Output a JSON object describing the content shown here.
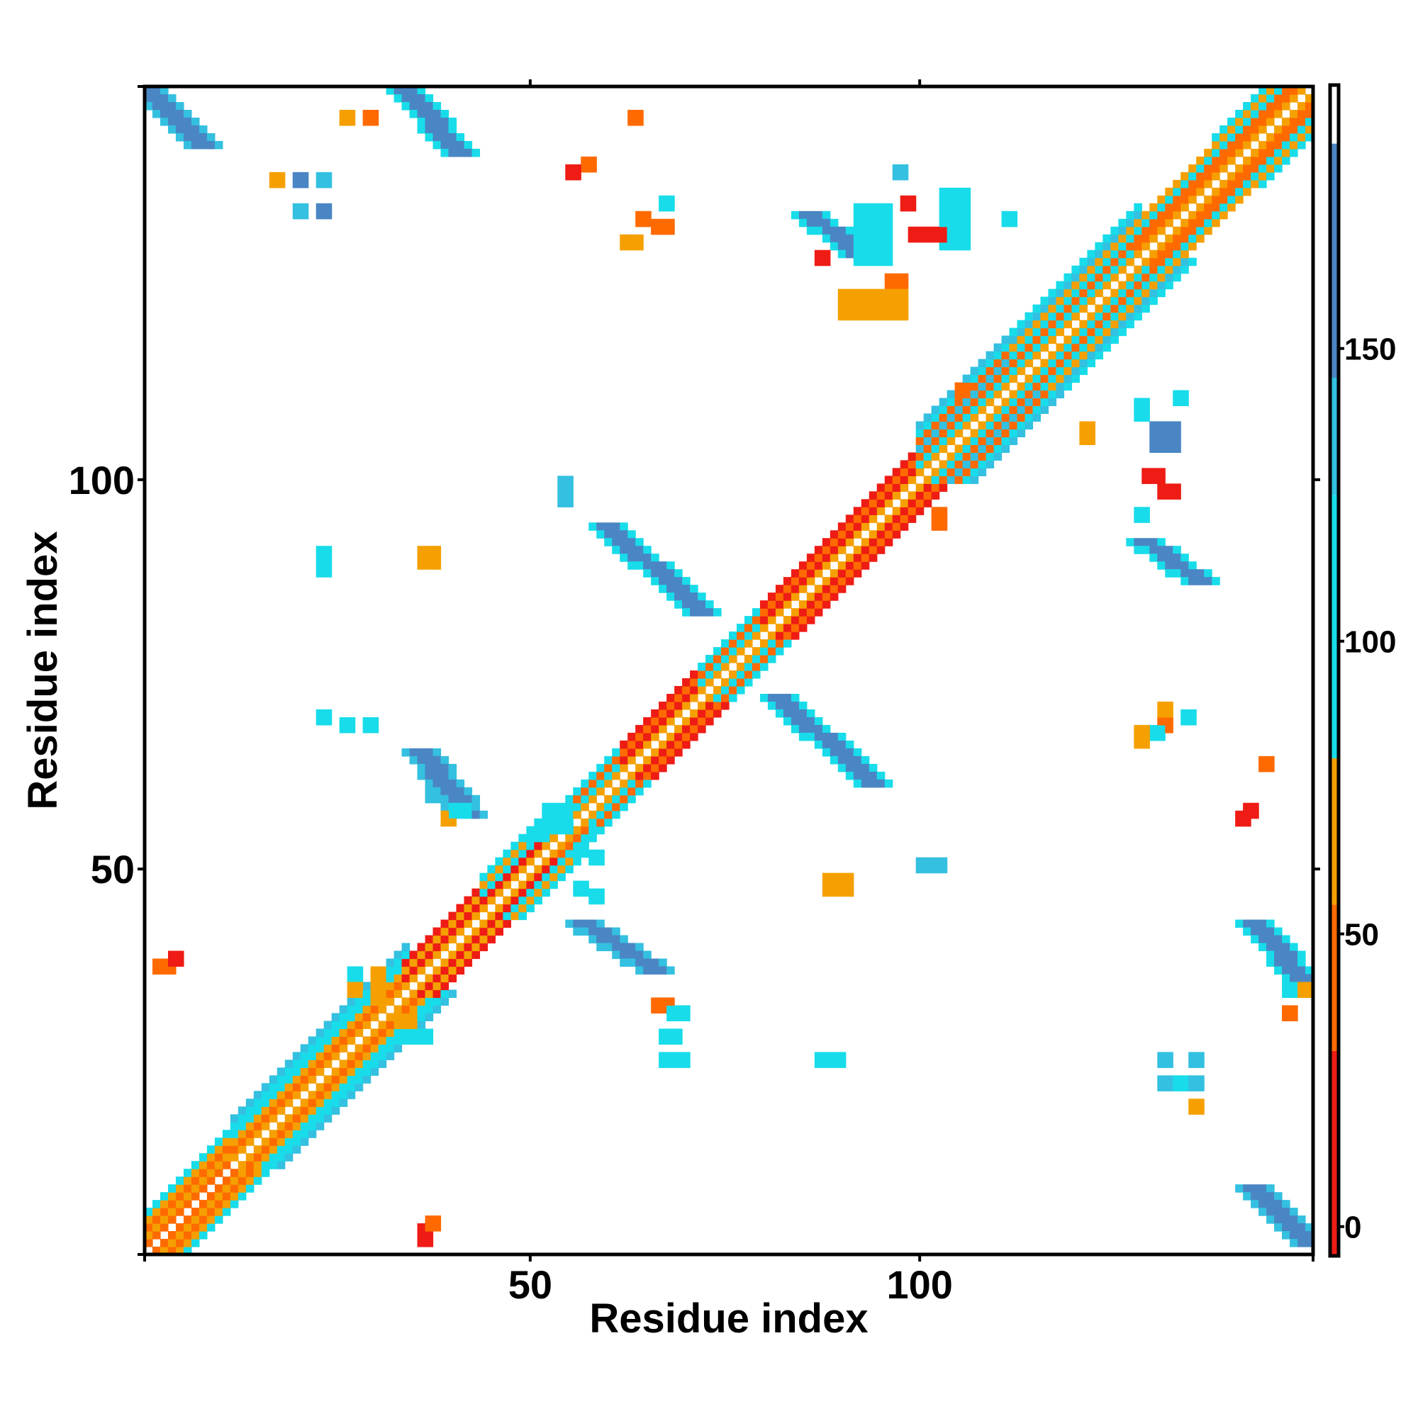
{
  "chart_data": {
    "type": "heatmap",
    "title": "",
    "xlabel": "Residue index",
    "ylabel": "Residue index",
    "xlim": [
      0.5,
      150.5
    ],
    "ylim": [
      0.5,
      150.5
    ],
    "x_ticks": [
      50,
      100
    ],
    "y_ticks": [
      50,
      100
    ],
    "colorbar": {
      "range": [
        -5,
        195
      ],
      "ticks": [
        0,
        50,
        100,
        150
      ],
      "bands": [
        {
          "from": -5,
          "to": 30,
          "color": "#ee1c14"
        },
        {
          "from": 30,
          "to": 55,
          "color": "#ff6a00"
        },
        {
          "from": 55,
          "to": 80,
          "color": "#f5a000"
        },
        {
          "from": 80,
          "to": 125,
          "color": "#18dcea"
        },
        {
          "from": 125,
          "to": 145,
          "color": "#34c0e0"
        },
        {
          "from": 145,
          "to": 185,
          "color": "#4a86c4"
        },
        {
          "from": 185,
          "to": 195,
          "color": "#ffffff"
        }
      ]
    },
    "diagonal_bands": [
      {
        "from": 1,
        "to": 12,
        "offsets": [
          [
            1,
            35
          ],
          [
            2,
            55
          ],
          [
            3,
            35
          ],
          [
            4,
            55
          ],
          [
            5,
            120
          ]
        ]
      },
      {
        "from": 12,
        "to": 34,
        "offsets": [
          [
            1,
            60
          ],
          [
            2,
            45
          ],
          [
            3,
            70
          ],
          [
            4,
            115
          ],
          [
            5,
            105
          ],
          [
            6,
            130
          ]
        ]
      },
      {
        "from": 34,
        "to": 44,
        "offsets": [
          [
            1,
            55
          ],
          [
            2,
            20
          ],
          [
            3,
            60
          ],
          [
            4,
            20
          ]
        ]
      },
      {
        "from": 44,
        "to": 52,
        "offsets": [
          [
            1,
            60
          ],
          [
            2,
            15
          ],
          [
            3,
            100
          ],
          [
            4,
            55
          ],
          [
            5,
            110
          ]
        ]
      },
      {
        "from": 52,
        "to": 56,
        "offsets": [
          [
            1,
            70
          ],
          [
            2,
            40
          ],
          [
            3,
            105
          ],
          [
            4,
            120
          ]
        ]
      },
      {
        "from": 56,
        "to": 62,
        "offsets": [
          [
            1,
            55
          ],
          [
            2,
            100
          ],
          [
            3,
            40
          ],
          [
            4,
            110
          ]
        ]
      },
      {
        "from": 62,
        "to": 72,
        "offsets": [
          [
            1,
            60
          ],
          [
            2,
            20
          ],
          [
            3,
            45
          ],
          [
            4,
            20
          ]
        ]
      },
      {
        "from": 72,
        "to": 80,
        "offsets": [
          [
            1,
            55
          ],
          [
            2,
            100
          ],
          [
            3,
            45
          ],
          [
            4,
            110
          ]
        ]
      },
      {
        "from": 80,
        "to": 90,
        "offsets": [
          [
            1,
            60
          ],
          [
            2,
            20
          ],
          [
            3,
            45
          ],
          [
            4,
            20
          ]
        ]
      },
      {
        "from": 90,
        "to": 100,
        "offsets": [
          [
            1,
            60
          ],
          [
            2,
            15
          ],
          [
            3,
            50
          ],
          [
            4,
            20
          ]
        ]
      },
      {
        "from": 100,
        "to": 112,
        "offsets": [
          [
            1,
            60
          ],
          [
            2,
            110
          ],
          [
            3,
            50
          ],
          [
            4,
            130
          ],
          [
            5,
            40
          ],
          [
            6,
            120
          ],
          [
            7,
            140
          ]
        ]
      },
      {
        "from": 112,
        "to": 128,
        "offsets": [
          [
            1,
            55
          ],
          [
            2,
            105
          ],
          [
            3,
            45
          ],
          [
            4,
            115
          ],
          [
            5,
            60
          ],
          [
            6,
            130
          ],
          [
            7,
            110
          ]
        ]
      },
      {
        "from": 128,
        "to": 138,
        "offsets": [
          [
            1,
            60
          ],
          [
            2,
            40
          ],
          [
            3,
            50
          ],
          [
            4,
            115
          ],
          [
            5,
            60
          ]
        ]
      },
      {
        "from": 138,
        "to": 150,
        "offsets": [
          [
            1,
            60
          ],
          [
            2,
            40
          ],
          [
            3,
            50
          ],
          [
            4,
            110
          ],
          [
            5,
            60
          ],
          [
            6,
            120
          ]
        ]
      }
    ],
    "off_diagonal_bands": [
      {
        "x": [
          1,
          8
        ],
        "y": [
          143,
          150
        ],
        "dir": "anti",
        "width": 2,
        "core": 165,
        "edge": 130
      },
      {
        "x": [
          34,
          41
        ],
        "y": [
          142,
          150
        ],
        "dir": "anti",
        "width": 2,
        "core": 160,
        "edge": 115
      },
      {
        "x": [
          60,
          72
        ],
        "y": [
          83,
          94
        ],
        "dir": "anti",
        "width": 2,
        "core": 165,
        "edge": 120
      },
      {
        "x": [
          82,
          94
        ],
        "y": [
          61,
          72
        ],
        "dir": "anti",
        "width": 2,
        "core": 165,
        "edge": 120
      },
      {
        "x": [
          36,
          42
        ],
        "y": [
          57,
          65
        ],
        "dir": "anti",
        "width": 2,
        "core": 160,
        "edge": 125
      },
      {
        "x": [
          57,
          66
        ],
        "y": [
          37,
          43
        ],
        "dir": "anti",
        "width": 2,
        "core": 160,
        "edge": 125
      },
      {
        "x": [
          143,
          150
        ],
        "y": [
          35,
          43
        ],
        "dir": "anti",
        "width": 2,
        "core": 160,
        "edge": 115
      },
      {
        "x": [
          143,
          150
        ],
        "y": [
          2,
          9
        ],
        "dir": "anti",
        "width": 2,
        "core": 160,
        "edge": 125
      },
      {
        "x": [
          86,
          92
        ],
        "y": [
          129,
          134
        ],
        "dir": "anti",
        "width": 2,
        "core": 160,
        "edge": 120
      },
      {
        "x": [
          129,
          136
        ],
        "y": [
          87,
          92
        ],
        "dir": "anti",
        "width": 2,
        "core": 160,
        "edge": 120
      }
    ],
    "blocks": [
      [
        92,
        128,
        96,
        135,
        110
      ],
      [
        103,
        130,
        106,
        137,
        115
      ],
      [
        99,
        131,
        103,
        132,
        20
      ],
      [
        96,
        125,
        98,
        126,
        35
      ],
      [
        98,
        135,
        99,
        136,
        15
      ],
      [
        90,
        121,
        98,
        124,
        60
      ],
      [
        87,
        128,
        88,
        129,
        20
      ],
      [
        129,
        100,
        131,
        101,
        20
      ],
      [
        131,
        98,
        133,
        99,
        15
      ],
      [
        128,
        95,
        129,
        96,
        115
      ],
      [
        130,
        104,
        133,
        107,
        150
      ],
      [
        128,
        108,
        129,
        110,
        120
      ],
      [
        100,
        50,
        103,
        51,
        130
      ],
      [
        54,
        97,
        55,
        100,
        130
      ],
      [
        88,
        47,
        91,
        49,
        65
      ],
      [
        36,
        89,
        38,
        91,
        65
      ],
      [
        23,
        90,
        24,
        91,
        110
      ],
      [
        23,
        88,
        24,
        89,
        110
      ],
      [
        26,
        68,
        27,
        69,
        110
      ],
      [
        23,
        69,
        24,
        70,
        110
      ],
      [
        29,
        68,
        30,
        69,
        120
      ],
      [
        26,
        146,
        27,
        147,
        65
      ],
      [
        29,
        146,
        30,
        147,
        45
      ],
      [
        17,
        138,
        18,
        139,
        65
      ],
      [
        20,
        138,
        21,
        139,
        150
      ],
      [
        23,
        138,
        24,
        139,
        140
      ],
      [
        20,
        134,
        21,
        135,
        140
      ],
      [
        23,
        134,
        24,
        135,
        150
      ],
      [
        57,
        140,
        58,
        141,
        30
      ],
      [
        55,
        139,
        56,
        140,
        20
      ],
      [
        63,
        146,
        64,
        147,
        45
      ],
      [
        67,
        135,
        68,
        136,
        110
      ],
      [
        64,
        133,
        65,
        134,
        45
      ],
      [
        66,
        132,
        68,
        133,
        45
      ],
      [
        62,
        130,
        64,
        131,
        65
      ],
      [
        105,
        111,
        106,
        112,
        50
      ],
      [
        102,
        94,
        103,
        96,
        45
      ],
      [
        97,
        139,
        98,
        140,
        130
      ],
      [
        103,
        134,
        104,
        135,
        110
      ],
      [
        111,
        133,
        112,
        134,
        120
      ],
      [
        133,
        110,
        134,
        111,
        120
      ],
      [
        121,
        105,
        122,
        107,
        60
      ],
      [
        131,
        68,
        132,
        69,
        35
      ],
      [
        131,
        70,
        132,
        71,
        60
      ],
      [
        130,
        67,
        131,
        68,
        115
      ],
      [
        134,
        69,
        135,
        70,
        115
      ],
      [
        128,
        66,
        129,
        68,
        60
      ],
      [
        144,
        63,
        145,
        64,
        30
      ],
      [
        142,
        57,
        143,
        58,
        15
      ],
      [
        141,
        56,
        142,
        57,
        20
      ],
      [
        131,
        25,
        132,
        26,
        140
      ],
      [
        131,
        22,
        132,
        23,
        140
      ],
      [
        133,
        22,
        134,
        23,
        120
      ],
      [
        135,
        22,
        136,
        23,
        140
      ],
      [
        135,
        25,
        136,
        26,
        140
      ],
      [
        135,
        19,
        136,
        20,
        65
      ],
      [
        147,
        31,
        148,
        32,
        45
      ],
      [
        147,
        34,
        148,
        35,
        110
      ],
      [
        149,
        34,
        150,
        35,
        65
      ],
      [
        67,
        25,
        68,
        26,
        110
      ],
      [
        69,
        25,
        70,
        26,
        110
      ],
      [
        87,
        25,
        88,
        26,
        110
      ],
      [
        89,
        25,
        90,
        26,
        110
      ],
      [
        66,
        32,
        68,
        33,
        45
      ],
      [
        67,
        28,
        69,
        29,
        110
      ],
      [
        68,
        31,
        70,
        32,
        115
      ],
      [
        2,
        37,
        4,
        38,
        30
      ],
      [
        4,
        38,
        5,
        39,
        20
      ],
      [
        36,
        2,
        37,
        4,
        20
      ],
      [
        37,
        4,
        38,
        5,
        30
      ],
      [
        34,
        28,
        35,
        29,
        120
      ],
      [
        36,
        28,
        37,
        29,
        120
      ],
      [
        33,
        30,
        35,
        31,
        65
      ],
      [
        27,
        36,
        28,
        37,
        110
      ],
      [
        27,
        34,
        28,
        35,
        65
      ],
      [
        30,
        33,
        31,
        37,
        60
      ],
      [
        39,
        56,
        40,
        57,
        65
      ],
      [
        40,
        57,
        42,
        58,
        110
      ],
      [
        37,
        59,
        38,
        60,
        140
      ],
      [
        56,
        47,
        57,
        48,
        100
      ],
      [
        58,
        46,
        59,
        47,
        100
      ],
      [
        52,
        55,
        55,
        58,
        110
      ],
      [
        58,
        51,
        59,
        52,
        120
      ],
      [
        50,
        54,
        52,
        55,
        115
      ]
    ]
  }
}
